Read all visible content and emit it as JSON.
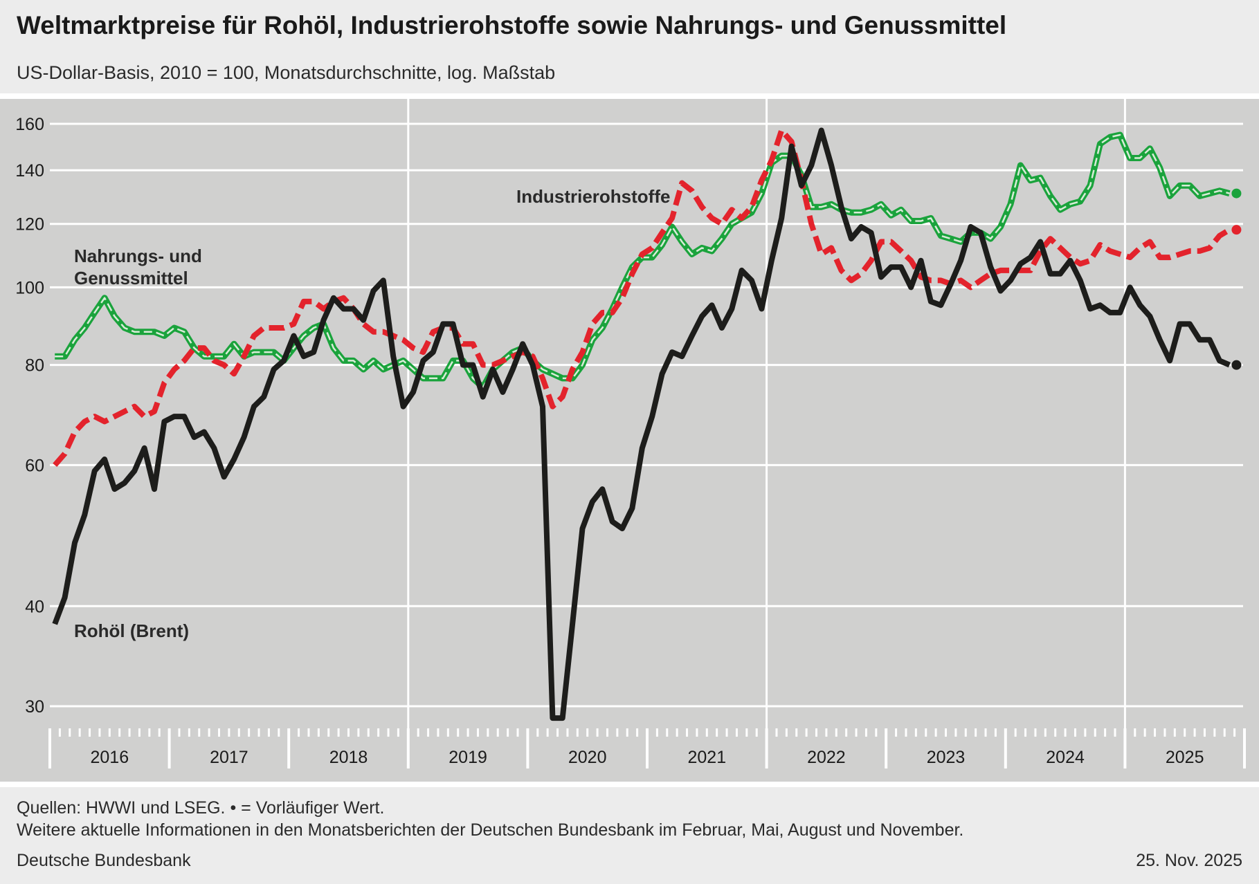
{
  "header": {
    "title": "Weltmarktpreise für Rohöl, Industrierohstoffe sowie Nahrungs- und Genussmittel",
    "subtitle": "US-Dollar-Basis, 2010 = 100, Monatsdurchschnitte, log. Maßstab"
  },
  "footer": {
    "sources": "Quellen: HWWI und LSEG. • = Vorläufiger Wert.",
    "info": "Weitere aktuelle Informationen in den Monatsberichten der Deutschen Bundesbank im Februar, Mai, August und November.",
    "publisher": "Deutsche Bundesbank",
    "date": "25. Nov. 2025"
  },
  "chart_data": {
    "type": "line",
    "title": "Weltmarktpreise für Rohöl, Industrierohstoffe sowie Nahrungs- und Genussmittel",
    "subtitle": "US-Dollar-Basis, 2010 = 100, Monatsdurchschnitte, log. Maßstab",
    "yscale": "log",
    "ylim": [
      28,
      165
    ],
    "yticks": [
      30,
      40,
      60,
      80,
      100,
      120,
      140,
      160
    ],
    "x_start": "2016-01",
    "x_end": "2025-10",
    "years": [
      "2016",
      "2017",
      "2018",
      "2019",
      "2020",
      "2021",
      "2022",
      "2023",
      "2024",
      "2025"
    ],
    "grid": true,
    "legend": "inline labels",
    "colors": {
      "background": "#d0d0cf",
      "oil": "#1d1d1b",
      "industrial": "#e3232c",
      "food": "#1aa33c",
      "grid": "#ffffff"
    },
    "provisional_marker": "last point of each series",
    "series": [
      {
        "name": "Rohöl (Brent)",
        "label": "Rohöl (Brent)",
        "values": [
          38,
          41,
          48,
          52,
          59,
          61,
          56,
          57,
          59,
          63,
          56,
          68,
          69,
          69,
          65,
          66,
          63,
          58,
          61,
          65,
          71,
          73,
          79,
          81,
          87,
          82,
          83,
          91,
          97,
          94,
          94,
          91,
          99,
          102,
          82,
          71,
          74,
          81,
          83,
          90,
          90,
          80,
          80,
          73,
          79,
          74,
          79,
          85,
          80,
          71,
          29,
          29,
          38,
          50,
          54,
          56,
          51,
          50,
          53,
          63,
          69,
          78,
          83,
          82,
          87,
          92,
          95,
          89,
          94,
          105,
          102,
          94,
          108,
          122,
          150,
          134,
          142,
          157,
          142,
          126,
          115,
          119,
          117,
          103,
          106,
          106,
          100,
          108,
          96,
          95,
          101,
          108,
          119,
          117,
          106,
          99,
          102,
          107,
          109,
          114,
          104,
          104,
          108,
          102,
          94,
          95,
          93,
          93,
          100,
          95,
          92,
          86,
          81,
          90,
          90,
          86,
          86,
          81,
          80
        ]
      },
      {
        "name": "Industrierohstoffe",
        "label": "Industrierohstoffe",
        "values": [
          60,
          62,
          66,
          68,
          69,
          68,
          69,
          70,
          71,
          69,
          70,
          76,
          79,
          81,
          84,
          84,
          81,
          80,
          78,
          82,
          87,
          89,
          89,
          89,
          90,
          96,
          96,
          94,
          96,
          97,
          94,
          90,
          88,
          88,
          87,
          86,
          84,
          83,
          88,
          89,
          89,
          85,
          85,
          80,
          80,
          81,
          82,
          83,
          82,
          77,
          71,
          73,
          79,
          83,
          90,
          93,
          93,
          97,
          104,
          110,
          112,
          117,
          122,
          135,
          132,
          126,
          122,
          120,
          125,
          122,
          126,
          136,
          144,
          157,
          152,
          136,
          120,
          110,
          112,
          105,
          102,
          104,
          108,
          114,
          114,
          111,
          108,
          103,
          102,
          102,
          101,
          102,
          100,
          102,
          104,
          105,
          105,
          105,
          105,
          111,
          115,
          112,
          109,
          107,
          108,
          113,
          111,
          110,
          109,
          112,
          114,
          109,
          109,
          110,
          111,
          111,
          112,
          116,
          118
        ]
      },
      {
        "name": "Nahrungs- und Genussmittel",
        "label": "Nahrungs- und Genussmittel",
        "values": [
          82,
          82,
          86,
          89,
          93,
          97,
          92,
          89,
          88,
          88,
          88,
          87,
          89,
          88,
          84,
          82,
          82,
          82,
          85,
          82,
          83,
          83,
          83,
          81,
          84,
          87,
          89,
          90,
          84,
          81,
          81,
          79,
          81,
          79,
          80,
          81,
          79,
          77,
          77,
          77,
          81,
          81,
          77,
          75,
          79,
          81,
          83,
          84,
          81,
          79,
          78,
          77,
          77,
          80,
          86,
          89,
          94,
          100,
          106,
          109,
          109,
          113,
          119,
          114,
          110,
          112,
          111,
          115,
          120,
          122,
          124,
          131,
          143,
          146,
          146,
          138,
          126,
          126,
          127,
          125,
          124,
          124,
          125,
          127,
          123,
          125,
          121,
          121,
          122,
          116,
          115,
          114,
          117,
          117,
          115,
          119,
          127,
          142,
          136,
          137,
          130,
          125,
          127,
          128,
          134,
          151,
          154,
          155,
          145,
          145,
          149,
          141,
          130,
          134,
          134,
          130,
          131,
          132,
          131
        ]
      }
    ]
  }
}
